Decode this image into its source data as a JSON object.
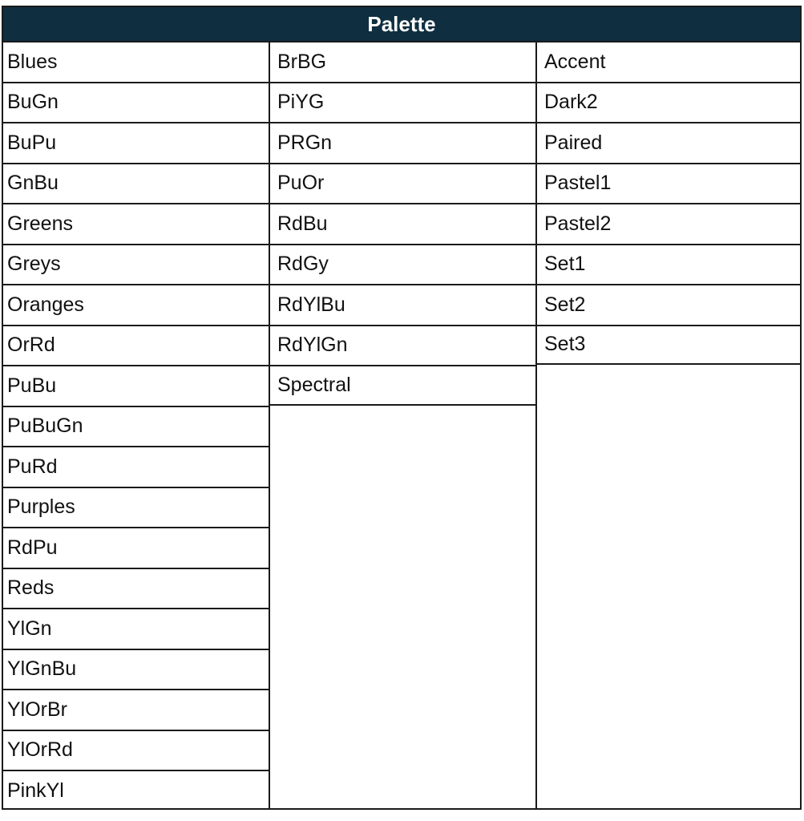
{
  "header": {
    "title": "Palette",
    "background": "#0f2e40"
  },
  "columns": [
    [
      "Blues",
      "BuGn",
      "BuPu",
      "GnBu",
      "Greens",
      "Greys",
      "Oranges",
      "OrRd",
      "PuBu",
      "PuBuGn",
      "PuRd",
      "Purples",
      "RdPu",
      "Reds",
      "YlGn",
      "YlGnBu",
      "YlOrBr",
      "YlOrRd",
      "PinkYl"
    ],
    [
      "BrBG",
      "PiYG",
      "PRGn",
      "PuOr",
      "RdBu",
      "RdGy",
      "RdYlBu",
      "RdYlGn",
      "Spectral"
    ],
    [
      "Accent",
      "Dark2",
      "Paired",
      "Pastel1",
      "Pastel2",
      "Set1",
      "Set2",
      "Set3"
    ]
  ]
}
